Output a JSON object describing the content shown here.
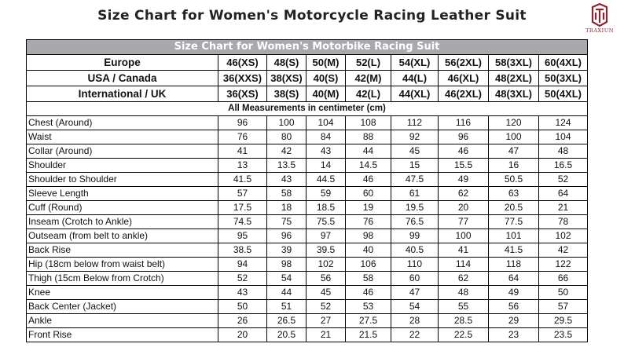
{
  "page_title": "Size Chart for Women's Motorcycle Racing Leather Suit",
  "logo": {
    "brand": "TRAXIUN",
    "icon": "traxiun-logo-icon",
    "color": "#8b2332"
  },
  "table": {
    "title": "Size Chart for Women's Motorbike Racing Suit",
    "header_bg": "#a7a9ac",
    "size_rows": [
      {
        "label": "Europe",
        "sizes": [
          "46(XS)",
          "48(S)",
          "50(M)",
          "52(L)",
          "54(XL)",
          "56(2XL)",
          "58(3XL)",
          "60(4XL)"
        ]
      },
      {
        "label": "USA / Canada",
        "sizes": [
          "36(XXS)",
          "38(XS)",
          "40(S)",
          "42(M)",
          "44(L)",
          "46(XL)",
          "48(2XL)",
          "50(3XL)"
        ]
      },
      {
        "label": "International / UK",
        "sizes": [
          "36(XS)",
          "38(S)",
          "40(M)",
          "42(L)",
          "44(XL)",
          "46(2XL)",
          "48(3XL)",
          "50(4XL)"
        ]
      }
    ],
    "measurement_note": "All Measurements in centimeter (cm)",
    "measurements": [
      {
        "name": "Chest (Around)",
        "values": [
          "96",
          "100",
          "104",
          "108",
          "112",
          "116",
          "120",
          "124"
        ]
      },
      {
        "name": "Waist",
        "values": [
          "76",
          "80",
          "84",
          "88",
          "92",
          "96",
          "100",
          "104"
        ]
      },
      {
        "name": "Collar (Around)",
        "values": [
          "41",
          "42",
          "43",
          "44",
          "45",
          "46",
          "47",
          "48"
        ]
      },
      {
        "name": "Shoulder",
        "values": [
          "13",
          "13.5",
          "14",
          "14.5",
          "15",
          "15.5",
          "16",
          "16.5"
        ]
      },
      {
        "name": "Shoulder to Shoulder",
        "values": [
          "41.5",
          "43",
          "44.5",
          "46",
          "47.5",
          "49",
          "50.5",
          "52"
        ]
      },
      {
        "name": "Sleeve Length",
        "values": [
          "57",
          "58",
          "59",
          "60",
          "61",
          "62",
          "63",
          "64"
        ]
      },
      {
        "name": "Cuff (Round)",
        "values": [
          "17.5",
          "18",
          "18.5",
          "19",
          "19.5",
          "20",
          "20.5",
          "21"
        ]
      },
      {
        "name": "Inseam (Crotch to Ankle)",
        "values": [
          "74.5",
          "75",
          "75.5",
          "76",
          "76.5",
          "77",
          "77.5",
          "78"
        ]
      },
      {
        "name": "Outseam (from belt to ankle)",
        "values": [
          "95",
          "96",
          "97",
          "98",
          "99",
          "100",
          "101",
          "102"
        ]
      },
      {
        "name": "Back Rise",
        "values": [
          "38.5",
          "39",
          "39.5",
          "40",
          "40.5",
          "41",
          "41.5",
          "42"
        ]
      },
      {
        "name": "Hip (18cm below from waist belt)",
        "values": [
          "94",
          "98",
          "102",
          "106",
          "110",
          "114",
          "118",
          "122"
        ]
      },
      {
        "name": "Thigh (15cm Below from Crotch)",
        "values": [
          "52",
          "54",
          "56",
          "58",
          "60",
          "62",
          "64",
          "66"
        ]
      },
      {
        "name": "Knee",
        "values": [
          "43",
          "44",
          "45",
          "46",
          "47",
          "48",
          "49",
          "50"
        ]
      },
      {
        "name": "Back Center (Jacket)",
        "values": [
          "50",
          "51",
          "52",
          "53",
          "54",
          "55",
          "56",
          "57"
        ]
      },
      {
        "name": "Ankle",
        "values": [
          "26",
          "26.5",
          "27",
          "27.5",
          "28",
          "28.5",
          "29",
          "29.5"
        ]
      },
      {
        "name": "Front Rise",
        "values": [
          "20",
          "20.5",
          "21",
          "21.5",
          "22",
          "22.5",
          "23",
          "23.5"
        ]
      }
    ]
  }
}
